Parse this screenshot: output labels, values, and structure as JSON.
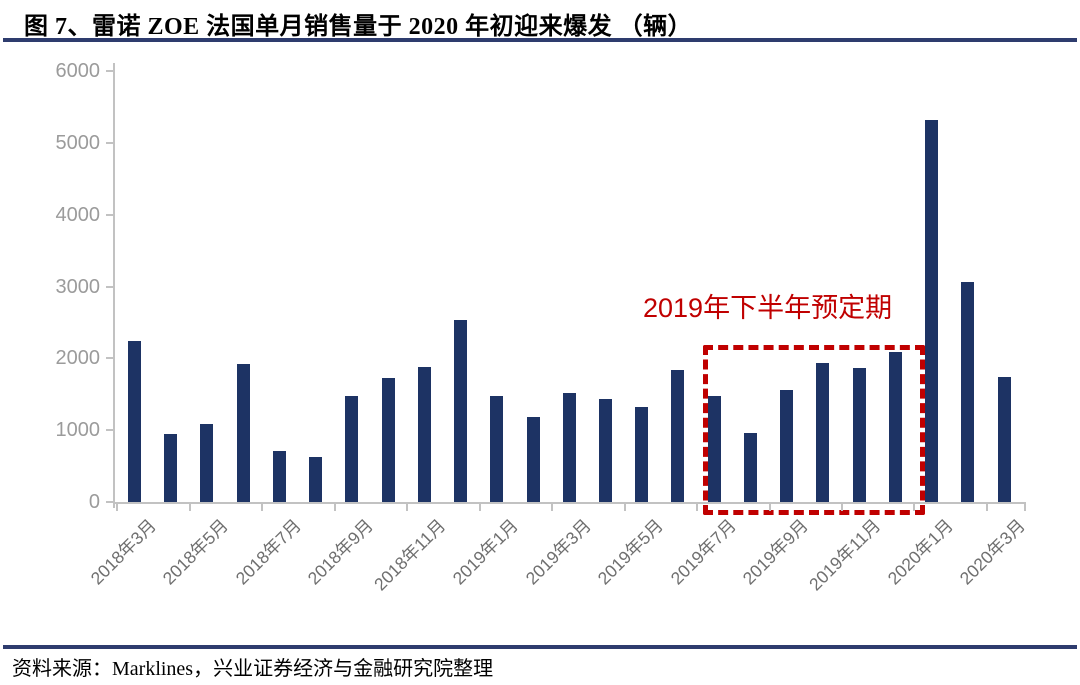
{
  "header": {
    "title": "图 7、雷诺 ZOE 法国单月销售量于 2020 年初迎来爆发 （辆）"
  },
  "footer": {
    "source": "资料来源：Marklines，兴业证券经济与金融研究院整理"
  },
  "colors": {
    "bar": "#1d3364",
    "annotation_red": "#c00000",
    "axis_gray": "#c2c2c2",
    "rule_navy": "#2e3c6e"
  },
  "chart_data": {
    "type": "bar",
    "title": "雷诺 ZOE 法国单月销售量（辆）",
    "categories": [
      "2018年3月",
      "2018年4月",
      "2018年5月",
      "2018年6月",
      "2018年7月",
      "2018年8月",
      "2018年9月",
      "2018年10月",
      "2018年11月",
      "2018年12月",
      "2019年1月",
      "2019年2月",
      "2019年3月",
      "2019年4月",
      "2019年5月",
      "2019年6月",
      "2019年7月",
      "2019年8月",
      "2019年9月",
      "2019年10月",
      "2019年11月",
      "2019年12月",
      "2020年1月",
      "2020年2月",
      "2020年3月"
    ],
    "values": [
      2240,
      950,
      1080,
      1920,
      710,
      620,
      1470,
      1730,
      1880,
      2540,
      1480,
      1180,
      1520,
      1440,
      1320,
      1840,
      1480,
      960,
      1560,
      1930,
      1860,
      2090,
      5320,
      3060,
      1740
    ],
    "x_tick_labels": [
      "2018年3月",
      "2018年5月",
      "2018年7月",
      "2018年9月",
      "2018年11月",
      "2019年1月",
      "2019年3月",
      "2019年5月",
      "2019年7月",
      "2019年9月",
      "2019年11月",
      "2020年1月",
      "2020年3月"
    ],
    "y_ticks": [
      0,
      1000,
      2000,
      3000,
      4000,
      5000,
      6000
    ],
    "ylim": [
      0,
      6000
    ],
    "xlabel": "",
    "ylabel": "",
    "grid": false,
    "legend": "none",
    "annotation": {
      "text": "2019年下半年预定期",
      "range_start": "2019年7月",
      "range_end": "2019年12月"
    }
  }
}
